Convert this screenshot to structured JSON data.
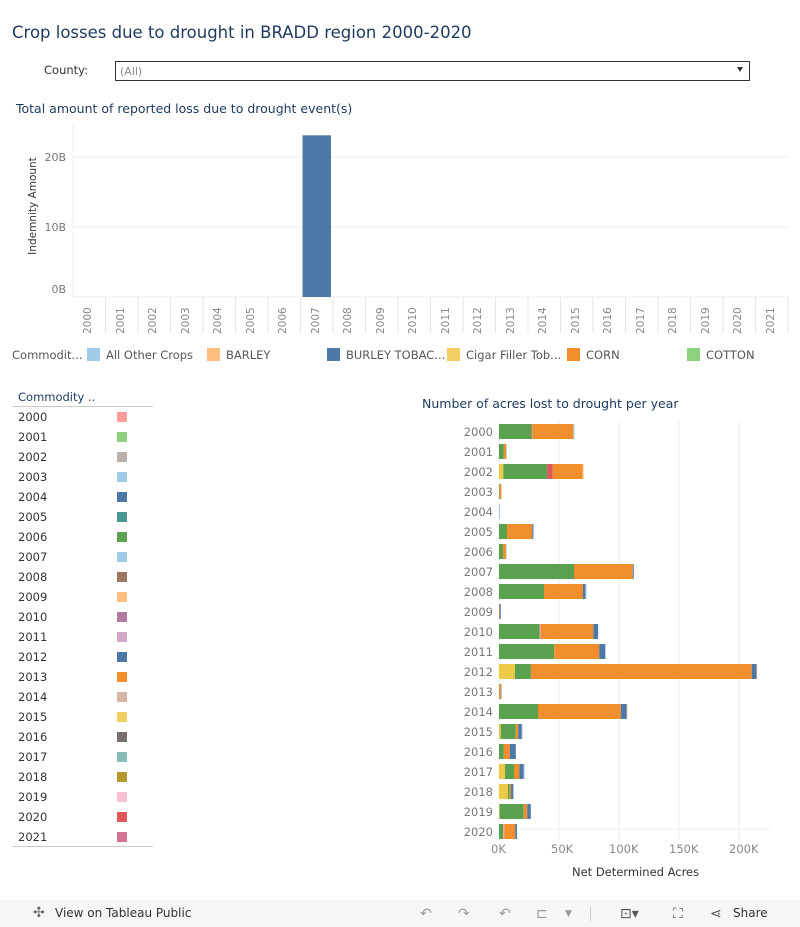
{
  "title": "Crop losses due to drought in BRADD region 2000-2020",
  "filter": {
    "label": "County:",
    "value": "(All)"
  },
  "chart_data": [
    {
      "type": "bar",
      "title": "Total amount of reported loss due to drought event(s)",
      "ylabel": "Indemnity Amount",
      "xlabel": "",
      "ylim": [
        0,
        24
      ],
      "yticks": [
        "0B",
        "10B",
        "20B"
      ],
      "grid": true,
      "categories": [
        "2000",
        "2001",
        "2002",
        "2003",
        "2004",
        "2005",
        "2006",
        "2007",
        "2008",
        "2009",
        "2010",
        "2011",
        "2012",
        "2013",
        "2014",
        "2015",
        "2016",
        "2017",
        "2018",
        "2019",
        "2020",
        "2021"
      ],
      "values_billions": [
        0,
        0,
        0,
        0,
        0,
        0,
        0,
        23.1,
        0,
        0,
        0,
        0,
        0,
        0,
        0,
        0,
        0,
        0,
        0,
        0,
        0,
        0
      ],
      "color": "#4e79a7"
    },
    {
      "type": "bar",
      "orientation": "horizontal",
      "stacked": true,
      "title": "Number of acres lost to drought per year",
      "xlabel": "Net Determined Acres",
      "ylabel": "",
      "xlim": [
        0,
        225000
      ],
      "xticks": [
        "0K",
        "50K",
        "100K",
        "150K",
        "200K"
      ],
      "grid": true,
      "categories": [
        "2000",
        "2001",
        "2002",
        "2003",
        "2004",
        "2005",
        "2006",
        "2007",
        "2008",
        "2009",
        "2010",
        "2011",
        "2012",
        "2013",
        "2014",
        "2015",
        "2016",
        "2017",
        "2018",
        "2019",
        "2020"
      ],
      "stacks_k": [
        [
          [
            "#59a14f",
            27
          ],
          [
            "#e15759",
            0.5
          ],
          [
            "#8cd17d",
            0.5
          ],
          [
            "#f28e2b",
            34
          ],
          [
            "#a0cbe8",
            0.8
          ]
        ],
        [
          [
            "#59a14f",
            4
          ],
          [
            "#f28e2b",
            2
          ],
          [
            "#a0cbe8",
            0.5
          ]
        ],
        [
          [
            "#edc948",
            3.6
          ],
          [
            "#59a14f",
            36.5
          ],
          [
            "#e15759",
            4.7
          ],
          [
            "#f28e2b",
            25
          ],
          [
            "#ffbe7d",
            0.6
          ]
        ],
        [
          [
            "#59a14f",
            0.5
          ],
          [
            "#f28e2b",
            1.5
          ]
        ],
        [
          [
            "#a0cbe8",
            0.8
          ]
        ],
        [
          [
            "#59a14f",
            6.7
          ],
          [
            "#f28e2b",
            21
          ],
          [
            "#4e79a7",
            1
          ]
        ],
        [
          [
            "#59a14f",
            3.3
          ],
          [
            "#f28e2b",
            2.5
          ],
          [
            "#a0cbe8",
            0.5
          ]
        ],
        [
          [
            "#59a14f",
            62.5
          ],
          [
            "#f28e2b",
            49
          ],
          [
            "#4e79a7",
            0.8
          ]
        ],
        [
          [
            "#59a14f",
            37.5
          ],
          [
            "#f28e2b",
            32.5
          ],
          [
            "#4e79a7",
            2
          ],
          [
            "#a0cbe8",
            1
          ]
        ],
        [
          [
            "#f28e2b",
            0.5
          ],
          [
            "#4e79a7",
            1
          ]
        ],
        [
          [
            "#59a14f",
            34
          ],
          [
            "#ff9d9a",
            1
          ],
          [
            "#f28e2b",
            43.6
          ],
          [
            "#4e79a7",
            4
          ]
        ],
        [
          [
            "#59a14f",
            46
          ],
          [
            "#f28e2b",
            37.5
          ],
          [
            "#4e79a7",
            5
          ],
          [
            "#a0cbe8",
            0.5
          ]
        ],
        [
          [
            "#edc948",
            13.3
          ],
          [
            "#59a14f",
            13.3
          ],
          [
            "#f28e2b",
            184
          ],
          [
            "#4e79a7",
            4
          ],
          [
            "#ffbe7d",
            0.5
          ]
        ],
        [
          [
            "#f28e2b",
            1.5
          ],
          [
            "#4e79a7",
            0.5
          ]
        ],
        [
          [
            "#59a14f",
            32.5
          ],
          [
            "#f28e2b",
            69
          ],
          [
            "#4e79a7",
            5
          ],
          [
            "#ffbe7d",
            0.5
          ]
        ],
        [
          [
            "#edc948",
            1.5
          ],
          [
            "#59a14f",
            12.5
          ],
          [
            "#f28e2b",
            2
          ],
          [
            "#4e79a7",
            3
          ],
          [
            "#a0cbe8",
            0.5
          ]
        ],
        [
          [
            "#59a14f",
            4
          ],
          [
            "#f28e2b",
            5
          ],
          [
            "#4e79a7",
            5
          ]
        ],
        [
          [
            "#edc948",
            5
          ],
          [
            "#59a14f",
            7.5
          ],
          [
            "#f28e2b",
            4.5
          ],
          [
            "#4e79a7",
            3.5
          ],
          [
            "#a0cbe8",
            0.8
          ]
        ],
        [
          [
            "#edc948",
            7.5
          ],
          [
            "#59a14f",
            1.5
          ],
          [
            "#f28e2b",
            1
          ],
          [
            "#4e79a7",
            2
          ]
        ],
        [
          [
            "#edc948",
            0.5
          ],
          [
            "#59a14f",
            20
          ],
          [
            "#f28e2b",
            3
          ],
          [
            "#4e79a7",
            3
          ]
        ],
        [
          [
            "#59a14f",
            3.5
          ],
          [
            "#ff9d9a",
            1
          ],
          [
            "#f28e2b",
            9
          ],
          [
            "#4e79a7",
            1.5
          ]
        ]
      ]
    }
  ],
  "commodity_legend": {
    "title": "Commodit...",
    "items": [
      {
        "label": "All Other Crops",
        "color": "#a0cbe8"
      },
      {
        "label": "BARLEY",
        "color": "#ffbe7d"
      },
      {
        "label": "BURLEY TOBAC...",
        "color": "#4e79a7"
      },
      {
        "label": "Cigar Filler Tob...",
        "color": "#f1ce63"
      },
      {
        "label": "CORN",
        "color": "#f28e2b"
      },
      {
        "label": "COTTON",
        "color": "#8cd17d"
      }
    ]
  },
  "year_legend": {
    "title": "Commodity ..",
    "items": [
      {
        "label": "2000",
        "color": "#ff9d9a"
      },
      {
        "label": "2001",
        "color": "#8cd17d"
      },
      {
        "label": "2002",
        "color": "#bab0ac"
      },
      {
        "label": "2003",
        "color": "#a0cbe8"
      },
      {
        "label": "2004",
        "color": "#4e79a7"
      },
      {
        "label": "2005",
        "color": "#499894"
      },
      {
        "label": "2006",
        "color": "#59a14f"
      },
      {
        "label": "2007",
        "color": "#a0cbe8"
      },
      {
        "label": "2008",
        "color": "#9d7660"
      },
      {
        "label": "2009",
        "color": "#ffbe7d"
      },
      {
        "label": "2010",
        "color": "#b07aa1"
      },
      {
        "label": "2011",
        "color": "#d4a6c8"
      },
      {
        "label": "2012",
        "color": "#4e79a7"
      },
      {
        "label": "2013",
        "color": "#f28e2b"
      },
      {
        "label": "2014",
        "color": "#d7b5a6"
      },
      {
        "label": "2015",
        "color": "#f1ce63"
      },
      {
        "label": "2016",
        "color": "#79706e"
      },
      {
        "label": "2017",
        "color": "#86bcb6"
      },
      {
        "label": "2018",
        "color": "#b6992d"
      },
      {
        "label": "2019",
        "color": "#fabfd2"
      },
      {
        "label": "2020",
        "color": "#e15759"
      },
      {
        "label": "2021",
        "color": "#d37295"
      }
    ]
  },
  "footer": {
    "view_label": "View on Tableau Public",
    "share_label": "Share",
    "icons": [
      "tableau-logo-icon",
      "undo-icon",
      "redo-icon",
      "revert-icon",
      "refresh-icon",
      "download-icon",
      "fullscreen-icon",
      "share-icon"
    ]
  }
}
